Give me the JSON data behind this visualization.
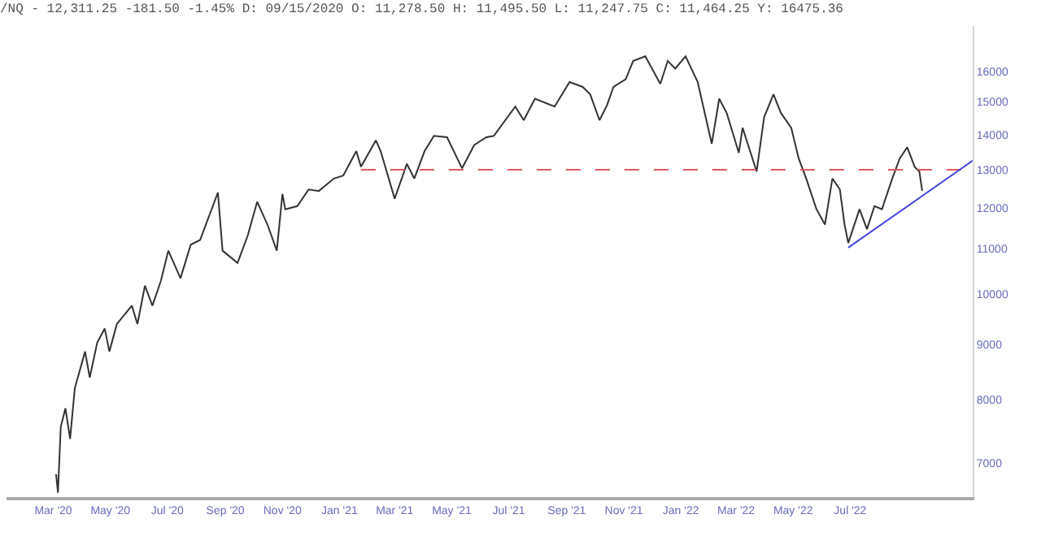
{
  "chart_data": {
    "type": "line",
    "title": "/NQ - 12,311.25 -181.50 -1.45% D: 09/15/2020 O: 11,278.50 H: 11,495.50 L: 11,247.75 C: 11,464.25 Y: 16475.36",
    "log": true,
    "marker": "none",
    "xlim": [
      "2020-01-11",
      "2022-11-09"
    ],
    "xticks": [
      {
        "value": "2020-03-01",
        "label": "Mar '20"
      },
      {
        "value": "2020-05-01",
        "label": "May '20"
      },
      {
        "value": "2020-07-01",
        "label": "Jul '20"
      },
      {
        "value": "2020-09-01",
        "label": "Sep '20"
      },
      {
        "value": "2020-11-01",
        "label": "Nov '20"
      },
      {
        "value": "2021-01-01",
        "label": "Jan '21"
      },
      {
        "value": "2021-03-01",
        "label": "Mar '21"
      },
      {
        "value": "2021-05-01",
        "label": "May '21"
      },
      {
        "value": "2021-07-01",
        "label": "Jul '21"
      },
      {
        "value": "2021-09-01",
        "label": "Sep '21"
      },
      {
        "value": "2021-11-01",
        "label": "Nov '21"
      },
      {
        "value": "2022-01-01",
        "label": "Jan '22"
      },
      {
        "value": "2022-03-01",
        "label": "Mar '22"
      },
      {
        "value": "2022-05-01",
        "label": "May '22"
      },
      {
        "value": "2022-07-01",
        "label": "Jul '22"
      }
    ],
    "ylim": [
      6520,
      17600
    ],
    "yticks": [
      7000,
      8000,
      9000,
      10000,
      11000,
      12000,
      13000,
      14000,
      15000,
      16000
    ],
    "series": [
      {
        "color": "#333333",
        "line_style": "solid",
        "x": [
          "2020-03-04",
          "2020-03-06",
          "2020-03-09",
          "2020-03-14",
          "2020-03-19",
          "2020-03-24",
          "2020-04-04",
          "2020-04-09",
          "2020-04-17",
          "2020-04-25",
          "2020-04-30",
          "2020-05-08",
          "2020-05-24",
          "2020-05-30",
          "2020-06-07",
          "2020-06-15",
          "2020-06-24",
          "2020-07-02",
          "2020-07-15",
          "2020-07-26",
          "2020-08-05",
          "2020-08-24",
          "2020-08-29",
          "2020-09-14",
          "2020-09-25",
          "2020-10-05",
          "2020-10-16",
          "2020-10-26",
          "2020-11-01",
          "2020-11-04",
          "2020-11-17",
          "2020-11-29",
          "2020-12-10",
          "2020-12-26",
          "2021-01-05",
          "2021-01-19",
          "2021-01-24",
          "2021-02-09",
          "2021-02-14",
          "2021-03-01",
          "2021-03-14",
          "2021-03-22",
          "2021-04-02",
          "2021-04-12",
          "2021-04-26",
          "2021-05-12",
          "2021-05-25",
          "2021-06-07",
          "2021-06-15",
          "2021-07-08",
          "2021-07-17",
          "2021-07-29",
          "2021-08-19",
          "2021-09-04",
          "2021-09-18",
          "2021-09-26",
          "2021-10-06",
          "2021-10-14",
          "2021-10-21",
          "2021-11-03",
          "2021-11-11",
          "2021-11-24",
          "2021-12-10",
          "2021-12-18",
          "2021-12-26",
          "2022-01-06",
          "2022-01-19",
          "2022-02-03",
          "2022-02-11",
          "2022-02-19",
          "2022-03-04",
          "2022-03-08",
          "2022-03-16",
          "2022-03-23",
          "2022-03-31",
          "2022-04-10",
          "2022-04-18",
          "2022-04-29",
          "2022-05-07",
          "2022-05-15",
          "2022-05-26",
          "2022-06-04",
          "2022-06-12",
          "2022-06-20",
          "2022-06-25",
          "2022-06-29",
          "2022-07-11",
          "2022-07-19",
          "2022-07-27",
          "2022-08-04",
          "2022-08-15",
          "2022-08-23",
          "2022-08-31",
          "2022-09-08",
          "2022-09-13",
          "2022-09-16"
        ],
        "values": [
          6840,
          6580,
          7560,
          7860,
          7370,
          8200,
          8860,
          8390,
          9030,
          9300,
          8860,
          9390,
          9760,
          9390,
          10180,
          9760,
          10280,
          10960,
          10340,
          11100,
          11210,
          12390,
          10960,
          10680,
          11320,
          12150,
          11580,
          10960,
          12350,
          11960,
          12040,
          12470,
          12430,
          12760,
          12840,
          13520,
          13080,
          13830,
          13520,
          12230,
          13160,
          12760,
          13520,
          13960,
          13920,
          13040,
          13690,
          13920,
          13960,
          14850,
          14430,
          15100,
          14850,
          15640,
          15480,
          15240,
          14430,
          14890,
          15480,
          15730,
          16350,
          16510,
          15580,
          16350,
          16090,
          16510,
          15640,
          13730,
          15100,
          14650,
          13470,
          14200,
          13520,
          12950,
          14520,
          15240,
          14650,
          14200,
          13310,
          12760,
          11960,
          11580,
          12760,
          12470,
          11580,
          11140,
          11960,
          11470,
          12040,
          11960,
          12760,
          13310,
          13630,
          13080,
          12950,
          12430
        ]
      },
      {
        "color": "#e05a5a",
        "line_style": "dashed",
        "x": [
          "2021-01-24",
          "2022-11-09"
        ],
        "values": [
          13000,
          13000
        ]
      },
      {
        "color": "#4646e0",
        "line_style": "solid",
        "x": [
          "2022-06-29",
          "2022-11-09"
        ],
        "values": [
          11030,
          13250
        ]
      }
    ]
  }
}
